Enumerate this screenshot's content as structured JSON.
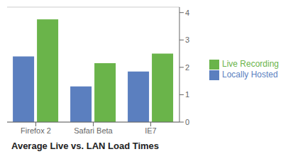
{
  "chart_data": {
    "type": "bar",
    "title": "Average Live vs. LAN Load Times",
    "categories": [
      "Firefox 2",
      "Safari Beta",
      "IE7"
    ],
    "series": [
      {
        "name": "Locally Hosted",
        "color": "#5b7fbf",
        "values": [
          2.4,
          1.3,
          1.85
        ]
      },
      {
        "name": "Live Recording",
        "color": "#6ab44a",
        "values": [
          3.75,
          2.15,
          2.5
        ]
      }
    ],
    "ylim": [
      0,
      4.2
    ],
    "yticks": [
      0,
      1,
      2,
      3,
      4
    ],
    "grid": true,
    "legend": "right"
  }
}
